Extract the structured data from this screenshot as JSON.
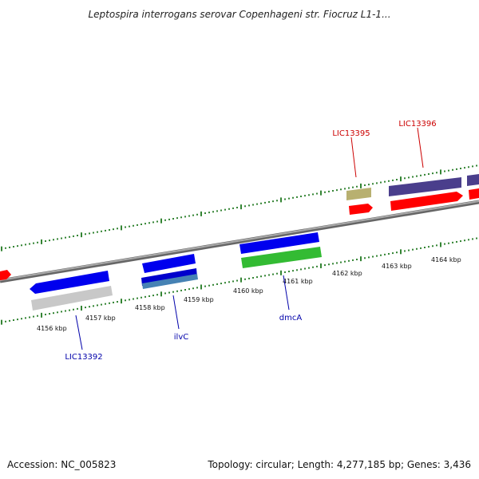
{
  "title": "Leptospira interrogans serovar Copenhageni str. Fiocruz L1-1...",
  "accession": "Accession: NC_005823",
  "summary": "Topology: circular; Length: 4,277,185 bp; Genes: 3,436",
  "colors": {
    "gene_label_red": "#cc0000",
    "gene_label_blue": "#0000aa",
    "tick_green": "#006600",
    "backbone": "#888888",
    "feature_blue": "#0000ee",
    "feature_red": "#ff0000",
    "feature_purple": "#4a3e8c",
    "feature_olive": "#b8b070",
    "feature_gray": "#c8c8c8",
    "feature_green": "#33bb33",
    "feature_steel": "#4682b4"
  },
  "kbp_ticks": [
    {
      "kbp": 4156,
      "label": "4156 kbp"
    },
    {
      "kbp": 4157,
      "label": "4157 kbp"
    },
    {
      "kbp": 4158,
      "label": "4158 kbp"
    },
    {
      "kbp": 4159,
      "label": "4159 kbp"
    },
    {
      "kbp": 4160,
      "label": "4160 kbp"
    },
    {
      "kbp": 4161,
      "label": "4161 kbp"
    },
    {
      "kbp": 4162,
      "label": "4162 kbp"
    },
    {
      "kbp": 4163,
      "label": "4163 kbp"
    },
    {
      "kbp": 4164,
      "label": "4164 kbp"
    }
  ],
  "gene_labels": [
    {
      "name": "LIC13395",
      "color": "red"
    },
    {
      "name": "LIC13396",
      "color": "red"
    },
    {
      "name": "LIC13392",
      "color": "blue"
    },
    {
      "name": "ilvC",
      "color": "blue"
    },
    {
      "name": "dmcA",
      "color": "blue"
    }
  ]
}
